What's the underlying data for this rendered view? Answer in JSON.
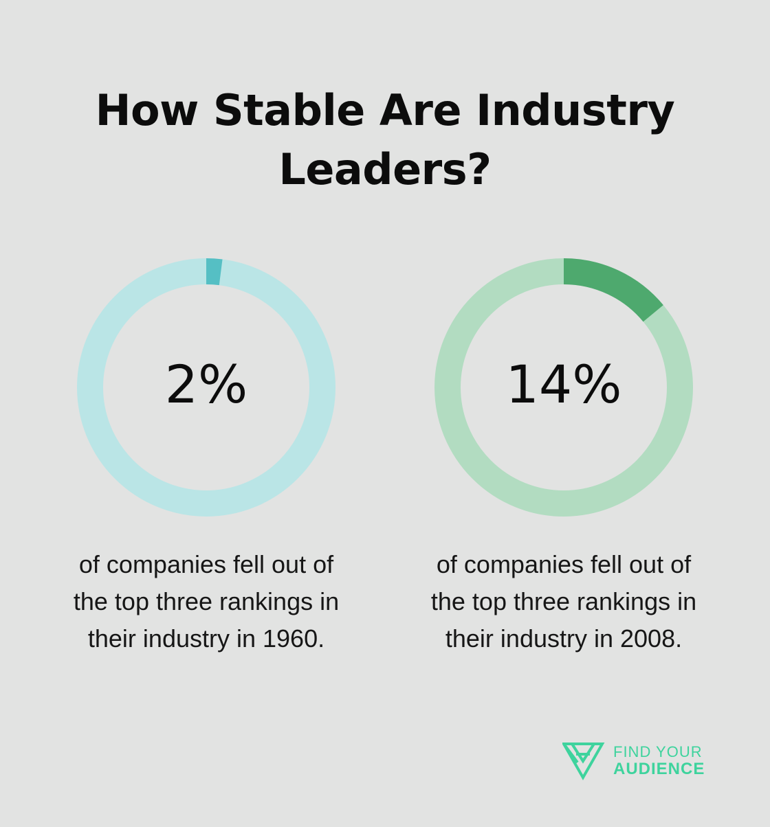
{
  "title": {
    "line1": "How Stable Are Industry",
    "line2": "Leaders?"
  },
  "chart_data": [
    {
      "type": "pie",
      "value": 2,
      "max": 100,
      "value_label": "2%",
      "caption": [
        "of companies fell out of",
        "the top three rankings in",
        "their industry in 1960."
      ],
      "colors": {
        "filled": "#55bfc4",
        "track": "#bae5e6"
      }
    },
    {
      "type": "pie",
      "value": 14,
      "max": 100,
      "value_label": "14%",
      "caption": [
        "of companies fell out of",
        "the top three rankings in",
        "their industry in 2008."
      ],
      "colors": {
        "filled": "#4ea96e",
        "track": "#b2dcc1"
      }
    }
  ],
  "logo": {
    "line1": "FIND YOUR",
    "line2": "AUDIENCE",
    "color": "#3ed39d",
    "icon": "find-your-audience-logo-icon"
  }
}
